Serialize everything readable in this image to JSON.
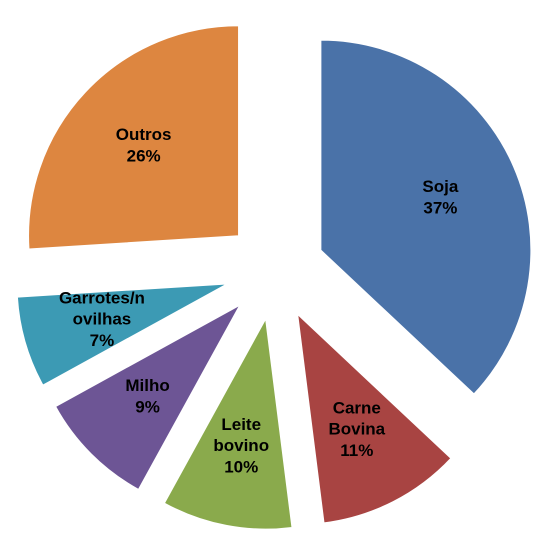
{
  "chart_data": {
    "type": "pie",
    "categories": [
      "Soja",
      "Carne Bovina",
      "Leite bovino",
      "Milho",
      "Garrotes/novilhas",
      "Outros"
    ],
    "values": [
      37,
      11,
      10,
      9,
      7,
      26
    ],
    "value_labels": [
      "37%",
      "11%",
      "10%",
      "9%",
      "7%",
      "26%"
    ],
    "colors": [
      "#4a72a8",
      "#a84442",
      "#8aaa4c",
      "#6d5595",
      "#3c9ab4",
      "#dd8640"
    ],
    "exploded": true
  }
}
